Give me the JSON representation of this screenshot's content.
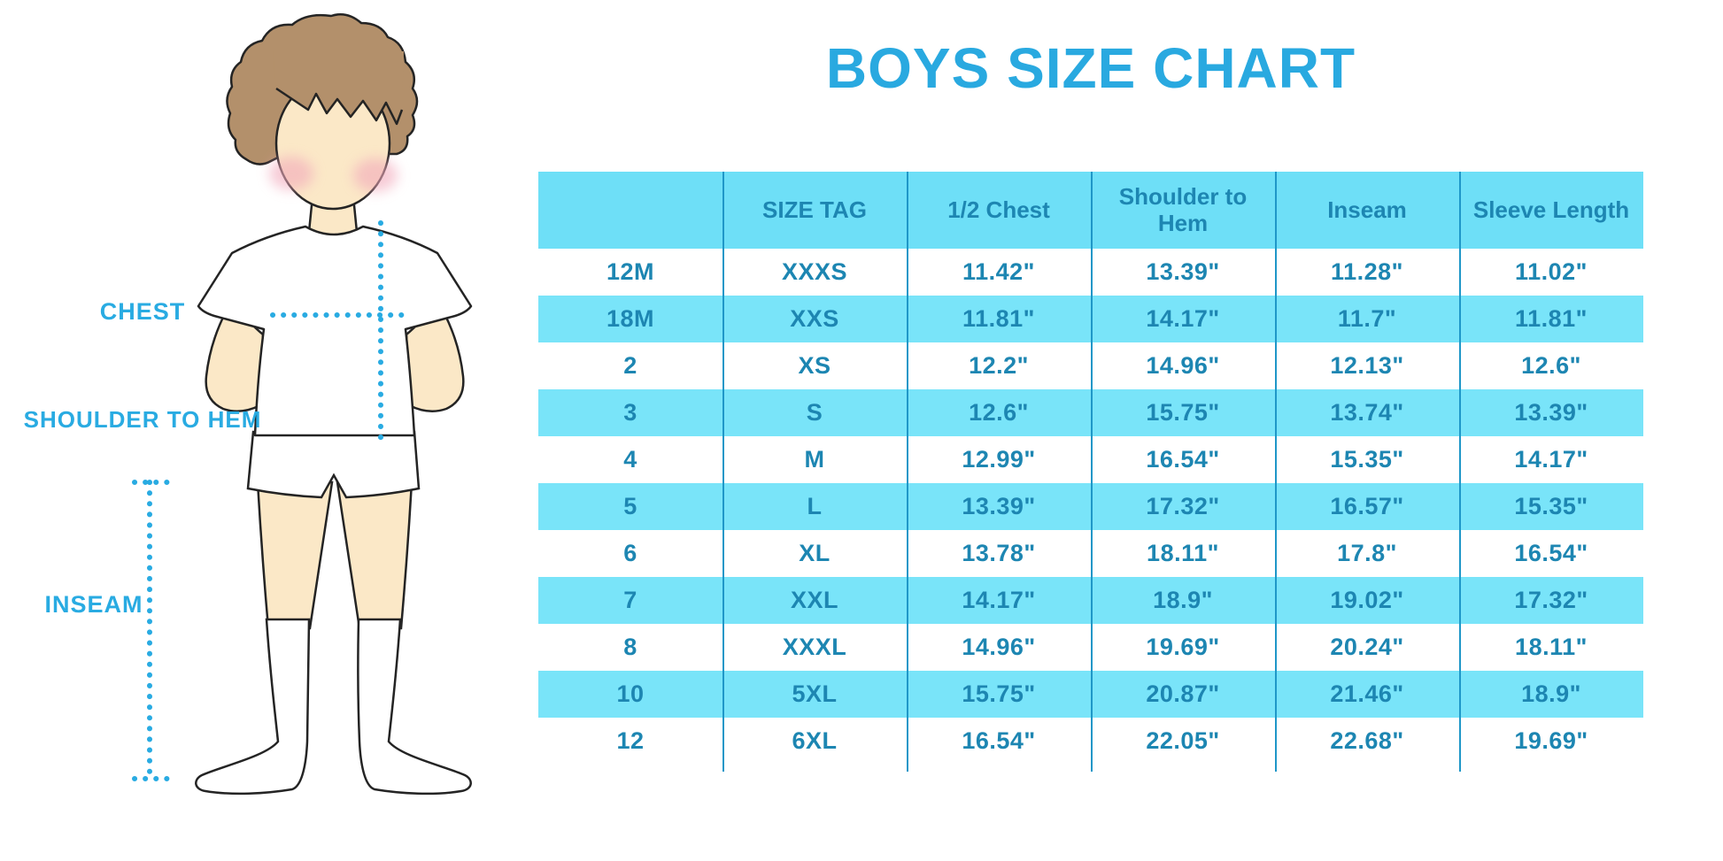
{
  "title": "BOYS SIZE CHART",
  "figure_labels": {
    "chest": "CHEST",
    "shoulder_to_hem": "SHOULDER TO HEM",
    "inseam": "INSEAM"
  },
  "chart_data": {
    "type": "table",
    "title": "BOYS SIZE CHART",
    "columns": [
      "",
      "SIZE TAG",
      "1/2 Chest",
      "Shoulder to Hem",
      "Inseam",
      "Sleeve Length"
    ],
    "rows": [
      [
        "12M",
        "XXXS",
        "11.42\"",
        "13.39\"",
        "11.28\"",
        "11.02\""
      ],
      [
        "18M",
        "XXS",
        "11.81\"",
        "14.17\"",
        "11.7\"",
        "11.81\""
      ],
      [
        "2",
        "XS",
        "12.2\"",
        "14.96\"",
        "12.13\"",
        "12.6\""
      ],
      [
        "3",
        "S",
        "12.6\"",
        "15.75\"",
        "13.74\"",
        "13.39\""
      ],
      [
        "4",
        "M",
        "12.99\"",
        "16.54\"",
        "15.35\"",
        "14.17\""
      ],
      [
        "5",
        "L",
        "13.39\"",
        "17.32\"",
        "16.57\"",
        "15.35\""
      ],
      [
        "6",
        "XL",
        "13.78\"",
        "18.11\"",
        "17.8\"",
        "16.54\""
      ],
      [
        "7",
        "XXL",
        "14.17\"",
        "18.9\"",
        "19.02\"",
        "17.32\""
      ],
      [
        "8",
        "XXXL",
        "14.96\"",
        "19.69\"",
        "20.24\"",
        "18.11\""
      ],
      [
        "10",
        "5XL",
        "15.75\"",
        "20.87\"",
        "21.46\"",
        "18.9\""
      ],
      [
        "12",
        "6XL",
        "16.54\"",
        "22.05\"",
        "22.68\"",
        "19.69\""
      ]
    ]
  },
  "colors": {
    "title": "#29a9e0",
    "header_bg": "#6edff7",
    "stripe_bg": "#79e4f9",
    "cell_text": "#1d86b2",
    "divider": "#1f97c8",
    "label_and_dots": "#29abe2",
    "hair": "#b3906b",
    "skin": "#fbe8c7",
    "blush": "#f2a9bb",
    "outline": "#242424"
  }
}
